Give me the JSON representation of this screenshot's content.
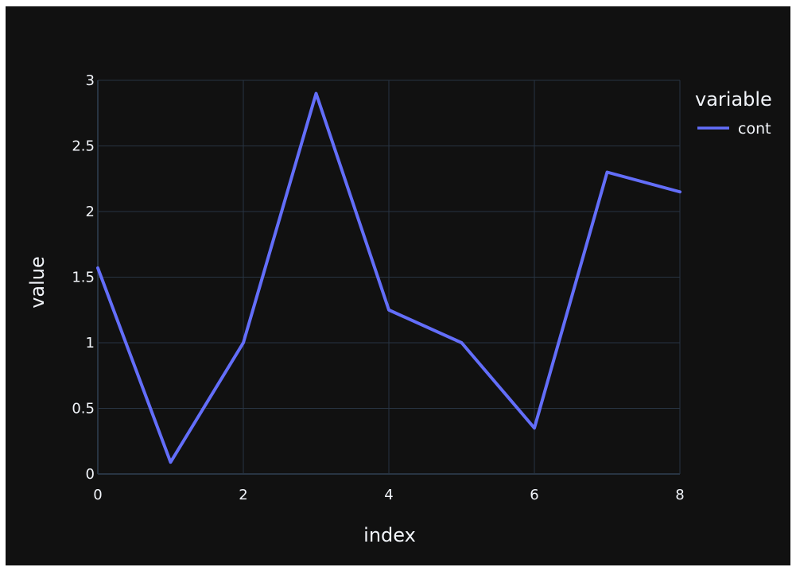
{
  "chart_data": {
    "type": "line",
    "title": "",
    "xlabel": "index",
    "ylabel": "value",
    "x": [
      0,
      1,
      2,
      3,
      4,
      5,
      6,
      7,
      8
    ],
    "series": [
      {
        "name": "cont",
        "color": "#636efa",
        "values": [
          1.57,
          0.09,
          1.0,
          2.9,
          1.25,
          1.0,
          0.35,
          2.3,
          2.15
        ]
      }
    ],
    "xlim": [
      0,
      8
    ],
    "ylim": [
      0,
      3
    ],
    "xticks": [
      0,
      2,
      4,
      6,
      8
    ],
    "yticks": [
      0,
      0.5,
      1,
      1.5,
      2,
      2.5,
      3
    ],
    "xtick_labels": [
      "0",
      "2",
      "4",
      "6",
      "8"
    ],
    "ytick_labels": [
      "0",
      "0.5",
      "1",
      "1.5",
      "2",
      "2.5",
      "3"
    ],
    "grid": true,
    "legend": {
      "title": "variable",
      "placement": "right"
    },
    "colors": {
      "background": "#111111",
      "plot_background": "#111111",
      "grid": "#283442",
      "text": "#f2f5fa"
    }
  }
}
